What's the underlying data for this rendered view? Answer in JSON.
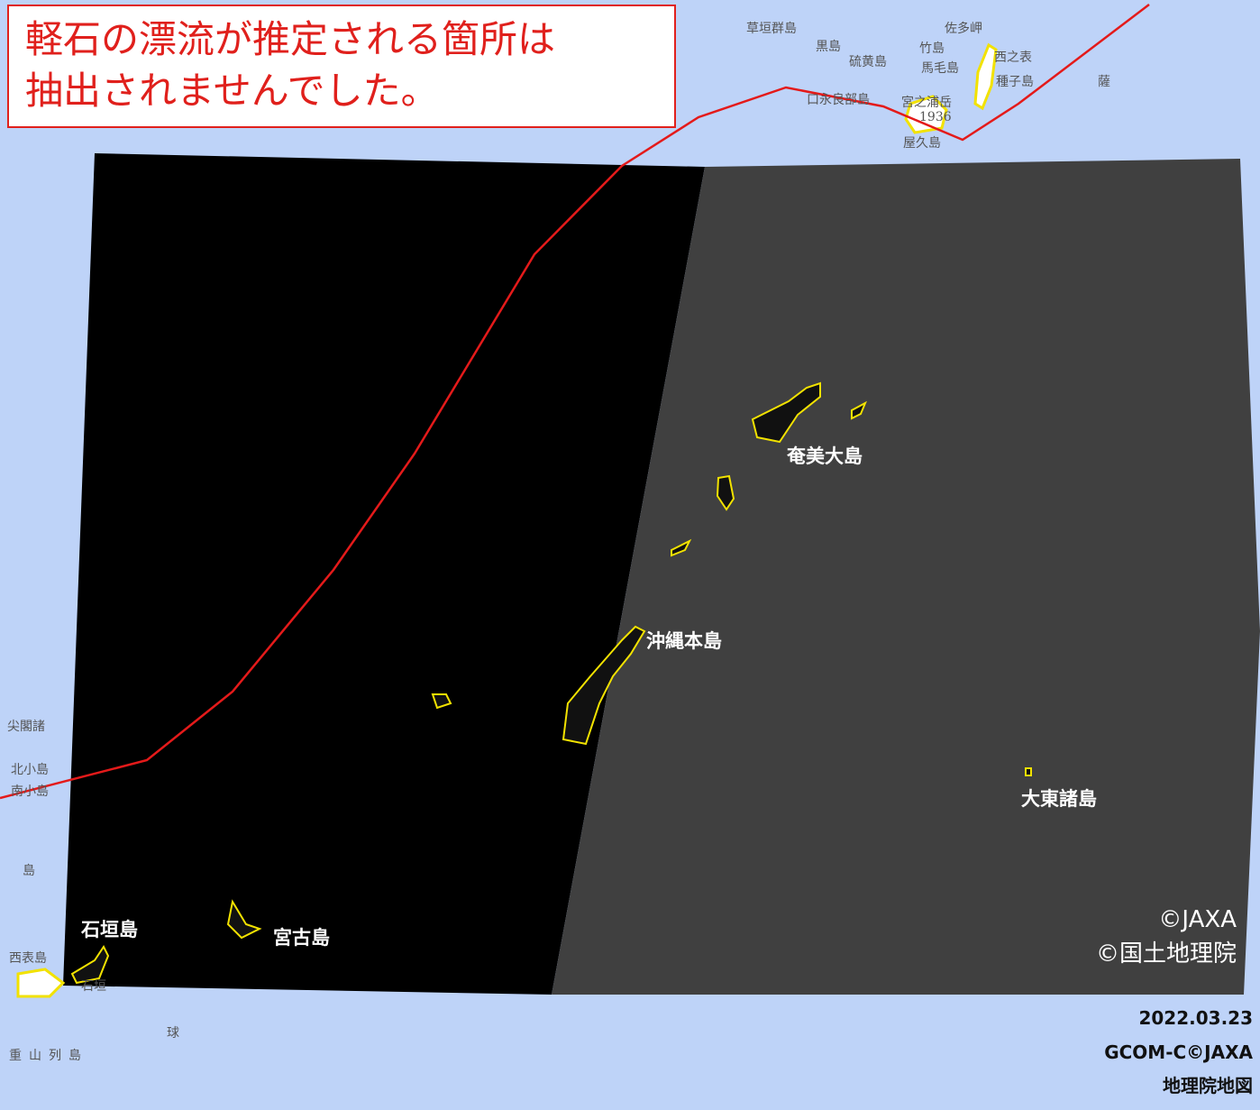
{
  "banner": {
    "lines": [
      "軽石の漂流が推定される箇所は",
      "抽出されませんでした。"
    ]
  },
  "island_labels": [
    "奄美大島",
    "沖縄本島",
    "大東諸島",
    "石垣島",
    "宮古島"
  ],
  "base_map_labels": [
    "草垣群島",
    "黒島",
    "硫黄島",
    "竹島",
    "馬毛島",
    "西之表",
    "種子島",
    "口永良部島",
    "宮之浦岳",
    "1936",
    "屋久島",
    "佐多岬",
    "薩",
    "尖閣諸",
    "北小島",
    "南小島",
    "島",
    "西表島",
    "石垣",
    "球",
    "重山列島"
  ],
  "credits": [
    "©JAXA",
    "©国土地理院"
  ],
  "footer": [
    "2022.03.23",
    "GCOM-C©JAXA",
    "地理院地図"
  ]
}
